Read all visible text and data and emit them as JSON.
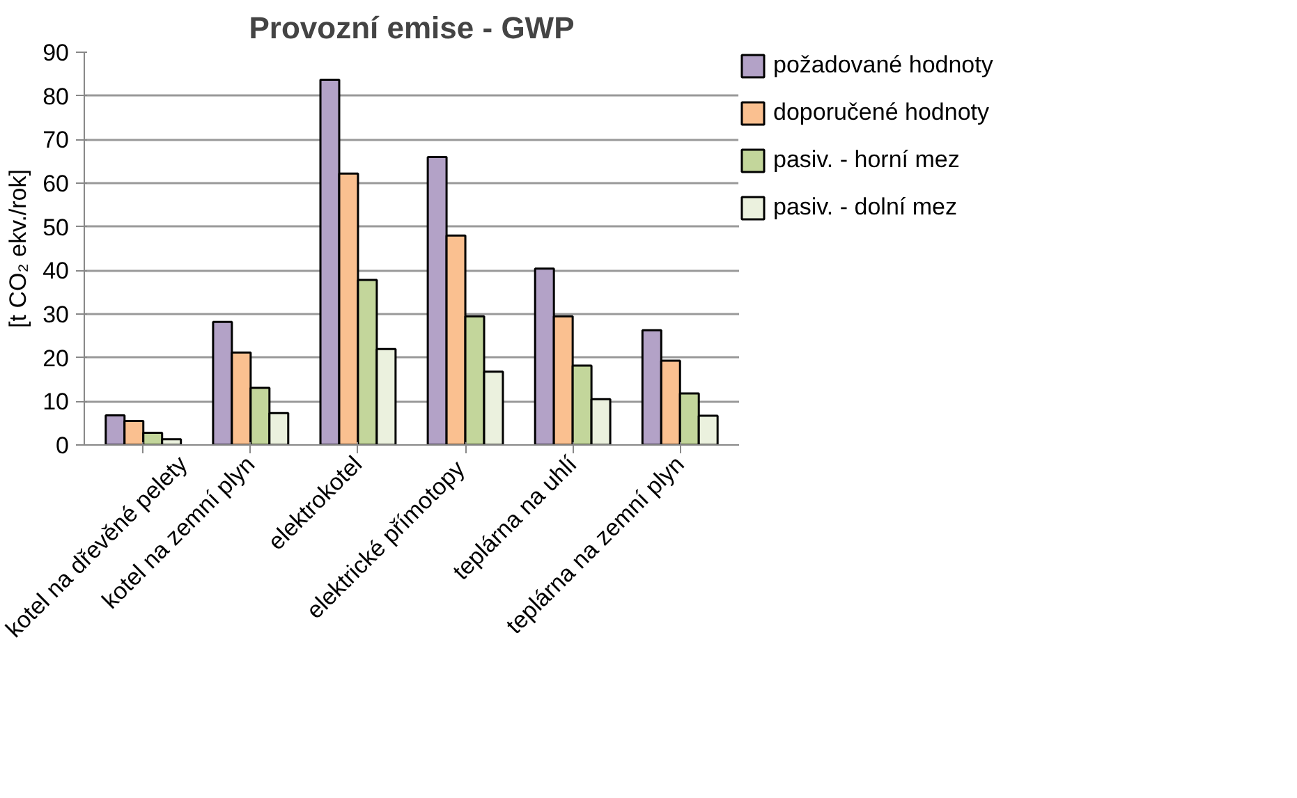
{
  "chart_data": {
    "type": "bar",
    "title": "Provozní emise - GWP",
    "ylabel": "[t CO₂ ekv./rok]",
    "categories": [
      "kotel na dřevěné pelety",
      "kotel na zemní plyn",
      "elektrokotel",
      "elektrické  přímotopy",
      "teplárna na uhlí",
      "teplárna na zemní plyn"
    ],
    "series": [
      {
        "name": "požadované hodnoty",
        "color": "#b3a2c7",
        "values": [
          6.8,
          28.2,
          83.7,
          66,
          40.4,
          26.3
        ]
      },
      {
        "name": "doporučené hodnoty",
        "color": "#fac090",
        "values": [
          5.5,
          21.2,
          62.2,
          48,
          29.5,
          19.3
        ]
      },
      {
        "name": "pasiv. - horní mez",
        "color": "#c3d69b",
        "values": [
          2.8,
          13.1,
          37.8,
          29.5,
          18.2,
          11.8
        ]
      },
      {
        "name": "pasiv. - dolní mez",
        "color": "#ebf1de",
        "values": [
          1.3,
          7.3,
          22,
          16.8,
          10.5,
          6.7
        ]
      }
    ],
    "ylim": [
      0,
      90
    ],
    "yticks": [
      0,
      10,
      20,
      30,
      40,
      50,
      60,
      70,
      80,
      90
    ],
    "grid": "y",
    "legend": "right"
  }
}
